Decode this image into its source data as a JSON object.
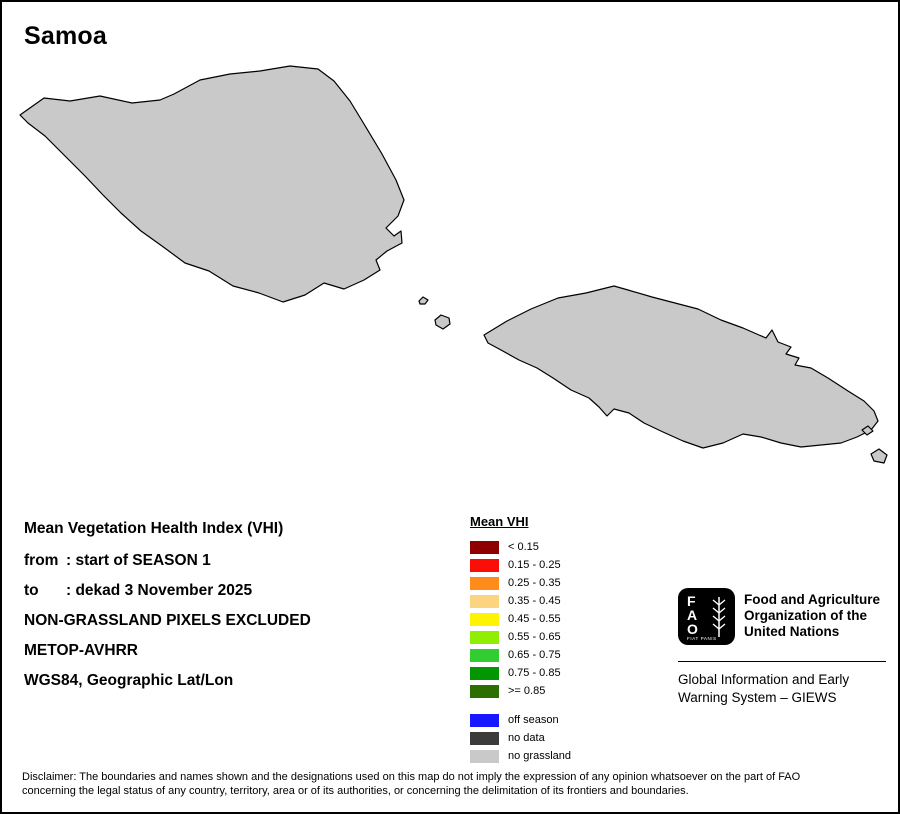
{
  "title": "Samoa",
  "map": {
    "island_fill": "#c9c9c9",
    "island_stroke": "#000000"
  },
  "info": {
    "heading": "Mean Vegetation Health Index (VHI)",
    "from_label": "from",
    "from_value": ": start of SEASON 1",
    "to_label": "to",
    "to_value": ": dekad 3 November 2025",
    "line_excluded": "NON-GRASSLAND PIXELS EXCLUDED",
    "line_sensor": "METOP-AVHRR",
    "line_projection": "WGS84, Geographic Lat/Lon"
  },
  "legend": {
    "title": "Mean VHI",
    "items": [
      {
        "label": "< 0.15",
        "color": "#8e0000"
      },
      {
        "label": "0.15 - 0.25",
        "color": "#fb0e07"
      },
      {
        "label": "0.25 - 0.35",
        "color": "#ff8c1a"
      },
      {
        "label": "0.35 - 0.45",
        "color": "#fcd37f"
      },
      {
        "label": "0.45 - 0.55",
        "color": "#fdf302"
      },
      {
        "label": "0.55 - 0.65",
        "color": "#8fee02"
      },
      {
        "label": "0.65 - 0.75",
        "color": "#31cd31"
      },
      {
        "label": "0.75 - 0.85",
        "color": "#029702"
      },
      {
        "label": ">= 0.85",
        "color": "#2d6e00"
      }
    ],
    "extra_items": [
      {
        "label": "off season",
        "color": "#1616ff"
      },
      {
        "label": "no data",
        "color": "#3b3b3b"
      },
      {
        "label": "no grassland",
        "color": "#c9c9c9"
      }
    ]
  },
  "fao": {
    "logo_letters": [
      "F",
      "A",
      "O"
    ],
    "motto": "FIAT PANIS",
    "org_lines": [
      "Food and Agriculture",
      "Organization of the",
      "United Nations"
    ],
    "giews_lines": [
      "Global Information and Early",
      "Warning System – GIEWS"
    ]
  },
  "disclaimer_lines": [
    "Disclaimer: The boundaries and names shown and the designations used on this map do not imply the expression of any opinion whatsoever on the part of FAO",
    "concerning the legal status of any country, territory, area or of its authorities, or concerning the delimitation of its frontiers and boundaries."
  ]
}
